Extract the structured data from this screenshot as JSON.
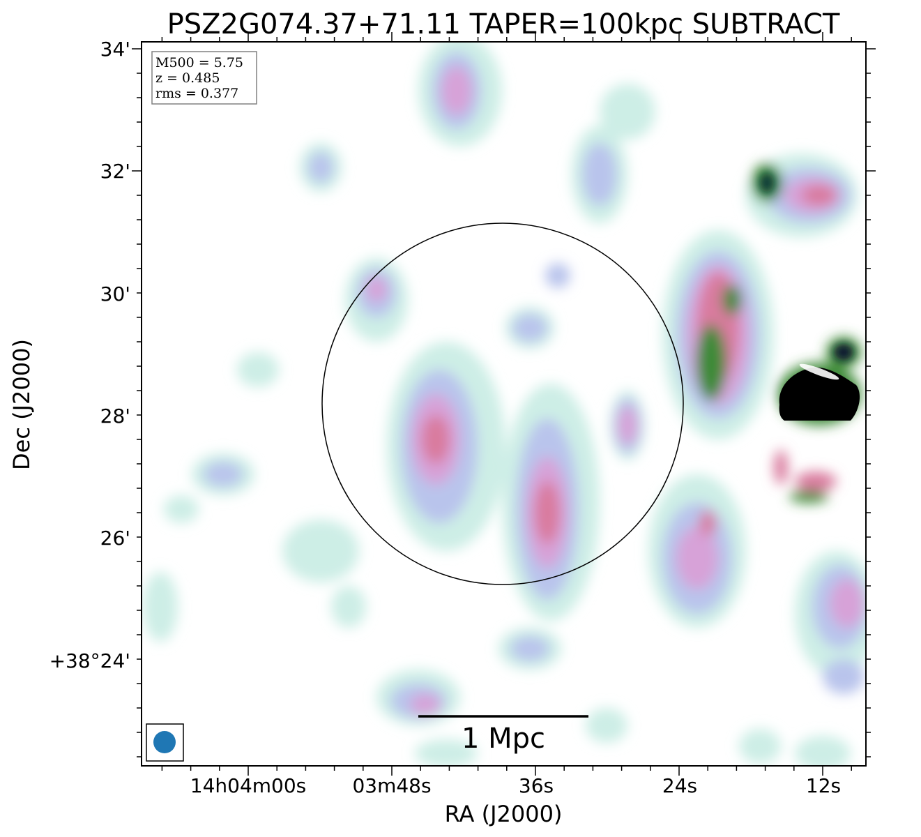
{
  "title": "PSZ2G074.37+71.11 TAPER=100kpc SUBTRACT",
  "xlabel": "RA (J2000)",
  "ylabel": "Dec (J2000)",
  "x_ticks": [
    "14h04m00s",
    "03m48s",
    "36s",
    "24s",
    "12s"
  ],
  "y_ticks": [
    "34'",
    "32'",
    "30'",
    "28'",
    "26'",
    "+38°24'"
  ],
  "info": {
    "m500": "M500 = 5.75",
    "z": "z = 0.485",
    "rms": "rms = 0.377"
  },
  "scalebar_label": "1 Mpc",
  "colors": {
    "faint": "#cdeee6",
    "low": "#b9c4ec",
    "mid": "#d7a2d8",
    "high": "#d97a9e",
    "bright": "#3e8a38",
    "peak": "#000000",
    "beam": "#1f77b4"
  },
  "chart_data": {
    "type": "heatmap",
    "title": "PSZ2G074.37+71.11 TAPER=100kpc SUBTRACT",
    "xlabel": "RA (J2000)",
    "ylabel": "Dec (J2000)",
    "x_tick_labels": [
      "14h04m00s",
      "03m48s",
      "36s",
      "24s",
      "12s"
    ],
    "y_tick_labels": [
      "34'",
      "32'",
      "30'",
      "28'",
      "26'",
      "+38°24'"
    ],
    "annotations": [
      "M500 = 5.75",
      "z = 0.485",
      "rms = 0.377",
      "1 Mpc"
    ]
  }
}
